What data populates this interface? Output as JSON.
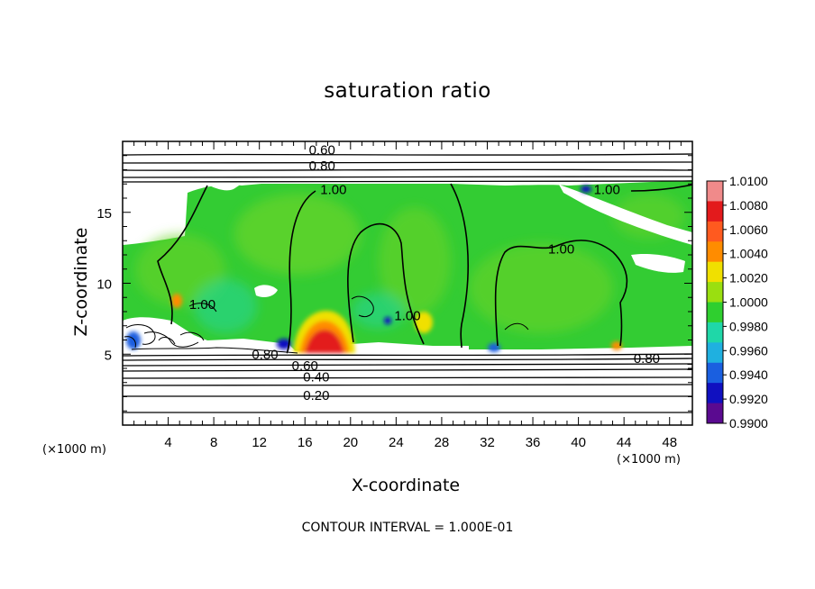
{
  "chart_data": {
    "type": "heatmap",
    "title": "saturation ratio",
    "xlabel": "X-coordinate",
    "ylabel": "Z-coordinate",
    "x_unit": "(×1000 m)",
    "footer": "CONTOUR INTERVAL = 1.000E-01",
    "xlim": [
      0,
      50
    ],
    "ylim": [
      0,
      20
    ],
    "x_ticks": [
      4,
      8,
      12,
      16,
      20,
      24,
      28,
      32,
      36,
      40,
      44,
      48
    ],
    "y_ticks": [
      5,
      10,
      15
    ],
    "colorbar": {
      "levels": [
        "1.0100",
        "1.0080",
        "1.0060",
        "1.0040",
        "1.0020",
        "1.0000",
        "0.9980",
        "0.9960",
        "0.9940",
        "0.9920",
        "0.9900"
      ],
      "colors": [
        "#f08a8a",
        "#e31a1c",
        "#ff5a1f",
        "#ff8c00",
        "#f0e000",
        "#9adf10",
        "#2fcf2f",
        "#1fd7a8",
        "#1fb0e0",
        "#1a5fe0",
        "#1010c0",
        "#5a0a90"
      ]
    },
    "contour_labels": [
      {
        "text": "0.60",
        "x": 17.5,
        "z": 19.4
      },
      {
        "text": "0.80",
        "x": 17.5,
        "z": 18.3
      },
      {
        "text": "1.00",
        "x": 18.5,
        "z": 16.6
      },
      {
        "text": "1.00",
        "x": 42.5,
        "z": 16.6
      },
      {
        "text": "1.00",
        "x": 38.5,
        "z": 12.4
      },
      {
        "text": "1.00",
        "x": 7.0,
        "z": 8.5
      },
      {
        "text": "1.00",
        "x": 25.0,
        "z": 7.7
      },
      {
        "text": "0.80",
        "x": 12.5,
        "z": 5.0
      },
      {
        "text": "0.60",
        "x": 16.0,
        "z": 4.2
      },
      {
        "text": "0.40",
        "x": 17.0,
        "z": 3.4
      },
      {
        "text": "0.20",
        "x": 17.0,
        "z": 2.1
      },
      {
        "text": "0.80",
        "x": 46.0,
        "z": 4.7
      }
    ]
  }
}
